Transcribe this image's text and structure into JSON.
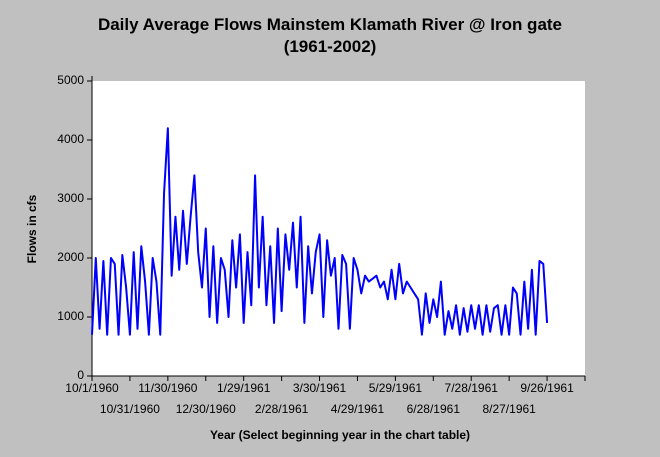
{
  "chart_data": {
    "type": "line",
    "title": "Daily Average Flows Mainstem Klamath River @ Iron gate (1961-2002)",
    "xlabel": "Year (Select beginning year in the chart table)",
    "ylabel": "Flows in cfs",
    "x": [
      0,
      3,
      6,
      9,
      12,
      15,
      18,
      21,
      24,
      27,
      30,
      33,
      36,
      39,
      42,
      45,
      48,
      51,
      54,
      57,
      60,
      63,
      66,
      69,
      72,
      75,
      78,
      81,
      84,
      87,
      90,
      93,
      96,
      99,
      102,
      105,
      108,
      111,
      114,
      117,
      120,
      123,
      126,
      129,
      132,
      135,
      138,
      141,
      144,
      147,
      150,
      153,
      156,
      159,
      162,
      165,
      168,
      171,
      174,
      177,
      180,
      183,
      186,
      189,
      192,
      195,
      198,
      201,
      204,
      207,
      210,
      213,
      216,
      219,
      222,
      225,
      228,
      231,
      234,
      237,
      240,
      243,
      246,
      249,
      252,
      255,
      258,
      261,
      264,
      267,
      270,
      273,
      276,
      279,
      282,
      285,
      288,
      291,
      294,
      297,
      300,
      303,
      306,
      309,
      312,
      315,
      318,
      321,
      324,
      327,
      330,
      333,
      336,
      339,
      342,
      345,
      348,
      351,
      354,
      357,
      360
    ],
    "series": [
      {
        "name": "Flows",
        "color": "#0000ff",
        "values": [
          700,
          2000,
          800,
          1950,
          700,
          2000,
          1900,
          700,
          2050,
          1500,
          700,
          2100,
          800,
          2200,
          1600,
          700,
          2000,
          1600,
          700,
          3100,
          4200,
          1700,
          2700,
          1800,
          2800,
          1900,
          2700,
          3400,
          2100,
          1500,
          2500,
          1000,
          2200,
          900,
          2000,
          1800,
          1000,
          2300,
          1500,
          2400,
          900,
          2100,
          1200,
          3400,
          1500,
          2700,
          1200,
          2200,
          900,
          2500,
          1100,
          2400,
          1800,
          2600,
          1500,
          2700,
          900,
          2200,
          1400,
          2100,
          2400,
          1000,
          2300,
          1700,
          2000,
          800,
          2050,
          1900,
          800,
          2000,
          1800,
          1400,
          1700,
          1600,
          1650,
          1700,
          1500,
          1600,
          1300,
          1800,
          1300,
          1900,
          1400,
          1600,
          1500,
          1400,
          1300,
          700,
          1400,
          900,
          1300,
          1000,
          1600,
          700,
          1100,
          800,
          1200,
          700,
          1150,
          750,
          1200,
          800,
          1200,
          700,
          1200,
          750,
          1150,
          1200,
          700,
          1200,
          700,
          1500,
          1400,
          700,
          1600,
          800,
          1800,
          700,
          1950,
          1900,
          900
        ]
      }
    ],
    "xlim": [
      0,
      390
    ],
    "xticks": [
      {
        "value": 0,
        "label": "10/1/1960"
      },
      {
        "value": 30,
        "label": "10/31/1960"
      },
      {
        "value": 60,
        "label": "11/30/1960"
      },
      {
        "value": 90,
        "label": "12/30/1960"
      },
      {
        "value": 120,
        "label": "1/29/1961"
      },
      {
        "value": 150,
        "label": "2/28/1961"
      },
      {
        "value": 180,
        "label": "3/30/1961"
      },
      {
        "value": 210,
        "label": "4/29/1961"
      },
      {
        "value": 240,
        "label": "5/29/1961"
      },
      {
        "value": 270,
        "label": "6/28/1961"
      },
      {
        "value": 300,
        "label": "7/28/1961"
      },
      {
        "value": 330,
        "label": "8/27/1961"
      },
      {
        "value": 360,
        "label": "9/26/1961"
      }
    ],
    "ylim": [
      0,
      5000
    ],
    "yticks": [
      0,
      1000,
      2000,
      3000,
      4000,
      5000
    ],
    "grid": false
  }
}
